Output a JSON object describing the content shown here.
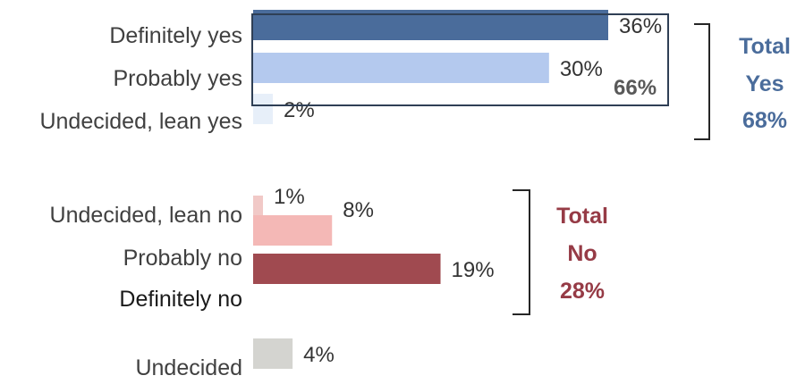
{
  "chart_data": {
    "type": "bar",
    "orientation": "horizontal",
    "categories": [
      "Definitely yes",
      "Probably yes",
      "Undecided, lean yes",
      "Undecided, lean no",
      "Probably no",
      "Definitely no",
      "Undecided"
    ],
    "values": [
      36,
      30,
      2,
      1,
      8,
      19,
      4
    ],
    "value_labels": [
      "36%",
      "30%",
      "2%",
      "1%",
      "8%",
      "19%",
      "4%"
    ],
    "colors": [
      "#4a6c9b",
      "#b4c9ee",
      "#e7eff9",
      "#f1c9c7",
      "#f4b8b6",
      "#a04a50",
      "#d4d4d0"
    ],
    "xlim": [
      0,
      40
    ],
    "grid": false,
    "annotations": {
      "combined_yes": {
        "label": "66%",
        "categories": [
          "Definitely yes",
          "Probably yes"
        ]
      },
      "total_yes": {
        "line1": "Total",
        "line2": "Yes",
        "line3": "68%",
        "color": "#4a6c9b"
      },
      "total_no": {
        "line1": "Total",
        "line2": "No",
        "line3": "28%",
        "color": "#963b46"
      }
    }
  }
}
